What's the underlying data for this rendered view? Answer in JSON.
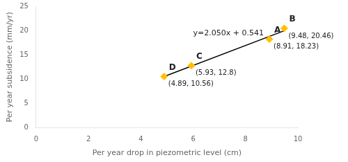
{
  "chart_data": {
    "type": "scatter",
    "xlabel": "Per year drop in piezometric level (cm)",
    "ylabel": "Per year subsidence (mm/yr)",
    "xlim": [
      0,
      10
    ],
    "ylim": [
      0,
      25
    ],
    "xticks": [
      0,
      2,
      4,
      6,
      8,
      10
    ],
    "yticks": [
      0,
      5,
      10,
      15,
      20,
      25
    ],
    "grid": false,
    "series": [
      {
        "type": "line",
        "color": "#000000",
        "x": [
          4.89,
          9.48
        ],
        "values": [
          10.5655,
          19.975
        ]
      },
      {
        "type": "scatter",
        "marker": "diamond",
        "color": "#FFC000",
        "x": [
          4.89,
          5.93,
          8.91,
          9.48
        ],
        "values": [
          10.56,
          12.8,
          18.23,
          20.46
        ],
        "point_labels": [
          "D",
          "C",
          "A",
          "B"
        ],
        "value_labels": [
          "(4.89, 10.56)",
          "(5.93, 12.8)",
          "(8.91, 18.23)",
          "(9.48, 20.46)"
        ]
      }
    ],
    "annotations": [
      {
        "text": "y=2.050x + 0.541"
      }
    ]
  }
}
